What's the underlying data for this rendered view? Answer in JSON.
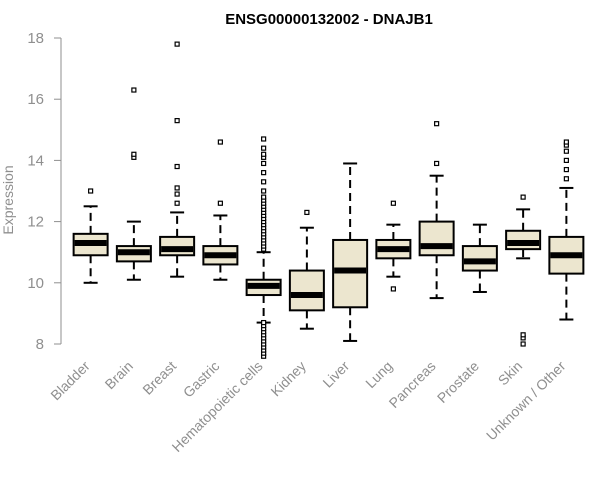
{
  "chart_data": {
    "type": "boxplot",
    "title": "ENSG00000132002 - DNAJB1",
    "ylabel": "Expression",
    "xlabel": "",
    "ylim": [
      7.8,
      18.1
    ],
    "yticks": [
      8,
      10,
      12,
      14,
      16,
      18
    ],
    "grid": false,
    "categories": [
      "Bladder",
      "Brain",
      "Breast",
      "Gastric",
      "Hematopoietic cells",
      "Kidney",
      "Liver",
      "Lung",
      "Pancreas",
      "Prostate",
      "Skin",
      "Unknown / Other"
    ],
    "series": [
      {
        "category": "Bladder",
        "whisker_low": 10.0,
        "q1": 10.9,
        "median": 11.3,
        "q3": 11.6,
        "whisker_high": 12.5,
        "outliers": [
          13.0
        ]
      },
      {
        "category": "Brain",
        "whisker_low": 10.1,
        "q1": 10.7,
        "median": 11.0,
        "q3": 11.2,
        "whisker_high": 12.0,
        "outliers": [
          14.1,
          14.2,
          16.3
        ]
      },
      {
        "category": "Breast",
        "whisker_low": 10.2,
        "q1": 10.9,
        "median": 11.1,
        "q3": 11.5,
        "whisker_high": 12.3,
        "outliers": [
          12.6,
          12.9,
          13.1,
          13.8,
          15.3,
          17.8
        ]
      },
      {
        "category": "Gastric",
        "whisker_low": 10.1,
        "q1": 10.6,
        "median": 10.9,
        "q3": 11.2,
        "whisker_high": 12.2,
        "outliers": [
          12.6,
          14.6
        ]
      },
      {
        "category": "Hematopoietic cells",
        "whisker_low": 8.7,
        "q1": 9.6,
        "median": 9.9,
        "q3": 10.1,
        "whisker_high": 11.0,
        "outliers": [
          7.6,
          7.7,
          7.8,
          7.9,
          8.0,
          8.1,
          8.2,
          8.3,
          8.4,
          8.5,
          8.6,
          8.7,
          11.1,
          11.2,
          11.3,
          11.4,
          11.5,
          11.6,
          11.7,
          11.8,
          11.9,
          12.0,
          12.1,
          12.2,
          12.3,
          12.4,
          12.5,
          12.6,
          12.7,
          12.8,
          13.0,
          13.3,
          13.6,
          13.9,
          14.1,
          14.2,
          14.4,
          14.7
        ]
      },
      {
        "category": "Kidney",
        "whisker_low": 8.5,
        "q1": 9.1,
        "median": 9.6,
        "q3": 10.4,
        "whisker_high": 11.8,
        "outliers": [
          12.3
        ]
      },
      {
        "category": "Liver",
        "whisker_low": 8.1,
        "q1": 9.2,
        "median": 10.4,
        "q3": 11.4,
        "whisker_high": 13.9,
        "outliers": []
      },
      {
        "category": "Lung",
        "whisker_low": 10.2,
        "q1": 10.8,
        "median": 11.1,
        "q3": 11.4,
        "whisker_high": 11.9,
        "outliers": [
          9.8,
          12.6
        ]
      },
      {
        "category": "Pancreas",
        "whisker_low": 9.5,
        "q1": 10.9,
        "median": 11.2,
        "q3": 12.0,
        "whisker_high": 13.5,
        "outliers": [
          13.9,
          15.2
        ]
      },
      {
        "category": "Prostate",
        "whisker_low": 9.7,
        "q1": 10.4,
        "median": 10.7,
        "q3": 11.2,
        "whisker_high": 11.9,
        "outliers": []
      },
      {
        "category": "Skin",
        "whisker_low": 10.8,
        "q1": 11.1,
        "median": 11.3,
        "q3": 11.7,
        "whisker_high": 12.4,
        "outliers": [
          8.0,
          8.2,
          8.3,
          12.8
        ]
      },
      {
        "category": "Unknown / Other",
        "whisker_low": 8.8,
        "q1": 10.3,
        "median": 10.9,
        "q3": 11.5,
        "whisker_high": 13.1,
        "outliers": [
          13.4,
          13.7,
          14.0,
          14.3,
          14.5,
          14.6
        ]
      }
    ],
    "colors": {
      "box_fill": "#ece6cf",
      "stroke": "#000000",
      "axis": "#8f8f8f",
      "text_muted": "#8f8f8f"
    }
  }
}
